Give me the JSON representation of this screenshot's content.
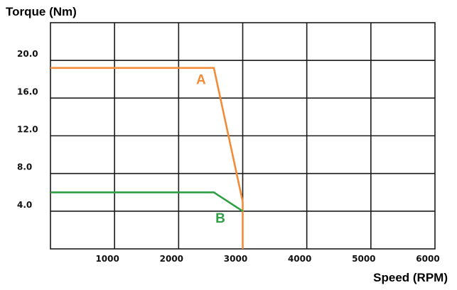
{
  "chart_data": {
    "type": "line",
    "ylabel": "Torque (Nm)",
    "xlabel": "Speed (RPM)",
    "xlim": [
      0,
      6000
    ],
    "ylim": [
      0,
      24
    ],
    "x_ticks": [
      1000,
      2000,
      3000,
      4000,
      5000,
      6000
    ],
    "x_tick_labels": [
      "1000",
      "2000",
      "3000",
      "4000",
      "5000",
      "6000"
    ],
    "y_ticks": [
      4,
      8,
      12,
      16,
      20
    ],
    "y_tick_labels": [
      "4.0",
      "8.0",
      "12.0",
      "16.0",
      "20.0"
    ],
    "grid": true,
    "series": [
      {
        "name": "A",
        "color": "#f28c38",
        "x": [
          0,
          2550,
          3000,
          3000
        ],
        "y": [
          19.2,
          19.2,
          5.0,
          0
        ]
      },
      {
        "name": "B",
        "color": "#2ea043",
        "x": [
          0,
          2550,
          3000
        ],
        "y": [
          6.0,
          6.0,
          4.0
        ]
      }
    ],
    "annotations": [
      {
        "text": "A",
        "color": "#f28c38",
        "x": 2350,
        "y": 17.5
      },
      {
        "text": "B",
        "color": "#2ea043",
        "x": 2650,
        "y": 2.8
      }
    ]
  }
}
